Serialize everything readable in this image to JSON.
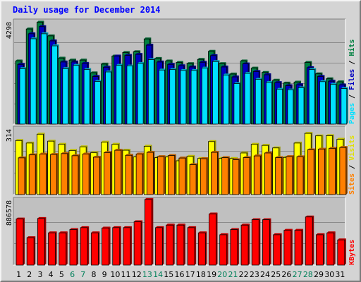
{
  "chart_data": [
    {
      "type": "bar",
      "title": "Daily usage for December 2014",
      "ylabel": "Pages / Files / Hits",
      "ymax_label": "4298",
      "ylim": [
        0,
        4298
      ],
      "categories": [
        "1",
        "2",
        "3",
        "4",
        "5",
        "6",
        "7",
        "8",
        "9",
        "10",
        "11",
        "12",
        "13",
        "14",
        "15",
        "16",
        "17",
        "18",
        "19",
        "20",
        "21",
        "22",
        "23",
        "24",
        "25",
        "26",
        "27",
        "28",
        "29",
        "30",
        "31"
      ],
      "weekend_days": [
        "6",
        "7",
        "13",
        "14",
        "20",
        "21",
        "27",
        "28"
      ],
      "series": [
        {
          "name": "Hits",
          "color": "#008040",
          "values": [
            2660,
            4010,
            4298,
            3720,
            2780,
            2700,
            2700,
            2160,
            2530,
            2870,
            3020,
            3050,
            3590,
            2770,
            2660,
            2600,
            2550,
            2730,
            3070,
            2550,
            2110,
            2660,
            2360,
            2180,
            1850,
            1730,
            1770,
            2600,
            2120,
            1910,
            1780
          ]
        },
        {
          "name": "Files",
          "color": "#0000c0",
          "values": [
            2520,
            3810,
            4110,
            3510,
            2620,
            2620,
            2560,
            2010,
            2400,
            2870,
            2900,
            2940,
            3330,
            2620,
            2520,
            2460,
            2410,
            2610,
            2890,
            2410,
            1990,
            2540,
            2220,
            2080,
            1750,
            1620,
            1660,
            2380,
            2010,
            1810,
            1650
          ]
        },
        {
          "name": "Pages",
          "color": "#00e0ff",
          "values": [
            2340,
            3600,
            3810,
            3300,
            2340,
            2480,
            2300,
            1800,
            2200,
            2480,
            2450,
            2560,
            2720,
            2280,
            2300,
            2260,
            2260,
            2360,
            2640,
            2070,
            1710,
            2140,
            1890,
            1760,
            1470,
            1440,
            1530,
            2300,
            1790,
            1680,
            1500
          ]
        }
      ]
    },
    {
      "type": "bar",
      "ylabel": "Sites / Visits",
      "ymax_label": "314",
      "ylim": [
        0,
        314
      ],
      "categories": [
        "1",
        "2",
        "3",
        "4",
        "5",
        "6",
        "7",
        "8",
        "9",
        "10",
        "11",
        "12",
        "13",
        "14",
        "15",
        "16",
        "17",
        "18",
        "19",
        "20",
        "21",
        "22",
        "23",
        "24",
        "25",
        "26",
        "27",
        "28",
        "29",
        "30",
        "31"
      ],
      "series": [
        {
          "name": "Visits",
          "color": "#ffff00",
          "values": [
            256,
            244,
            286,
            253,
            238,
            209,
            226,
            198,
            248,
            238,
            210,
            178,
            229,
            175,
            178,
            160,
            181,
            171,
            251,
            172,
            171,
            197,
            238,
            233,
            221,
            176,
            244,
            290,
            278,
            279,
            262
          ]
        },
        {
          "name": "Sites",
          "color": "#ff8000",
          "values": [
            174,
            188,
            192,
            190,
            194,
            184,
            192,
            177,
            199,
            210,
            186,
            192,
            200,
            180,
            185,
            173,
            142,
            170,
            200,
            175,
            165,
            175,
            183,
            197,
            175,
            180,
            179,
            212,
            215,
            219,
            223
          ]
        }
      ]
    },
    {
      "type": "bar",
      "ylabel": "KBytes",
      "ymax_label": "886578",
      "ylim": [
        0,
        886578
      ],
      "categories": [
        "1",
        "2",
        "3",
        "4",
        "5",
        "6",
        "7",
        "8",
        "9",
        "10",
        "11",
        "12",
        "13",
        "14",
        "15",
        "16",
        "17",
        "18",
        "19",
        "20",
        "21",
        "22",
        "23",
        "24",
        "25",
        "26",
        "27",
        "28",
        "29",
        "30",
        "31"
      ],
      "series": [
        {
          "name": "KBytes",
          "color": "#ff0000",
          "values": [
            622400,
            370000,
            630000,
            435000,
            435000,
            480000,
            506000,
            435000,
            500000,
            506000,
            506000,
            585000,
            886578,
            506000,
            540000,
            540000,
            506000,
            435000,
            690000,
            410000,
            480000,
            540000,
            613000,
            613000,
            410000,
            470000,
            470000,
            650000,
            410000,
            435000,
            340000
          ]
        }
      ]
    }
  ]
}
